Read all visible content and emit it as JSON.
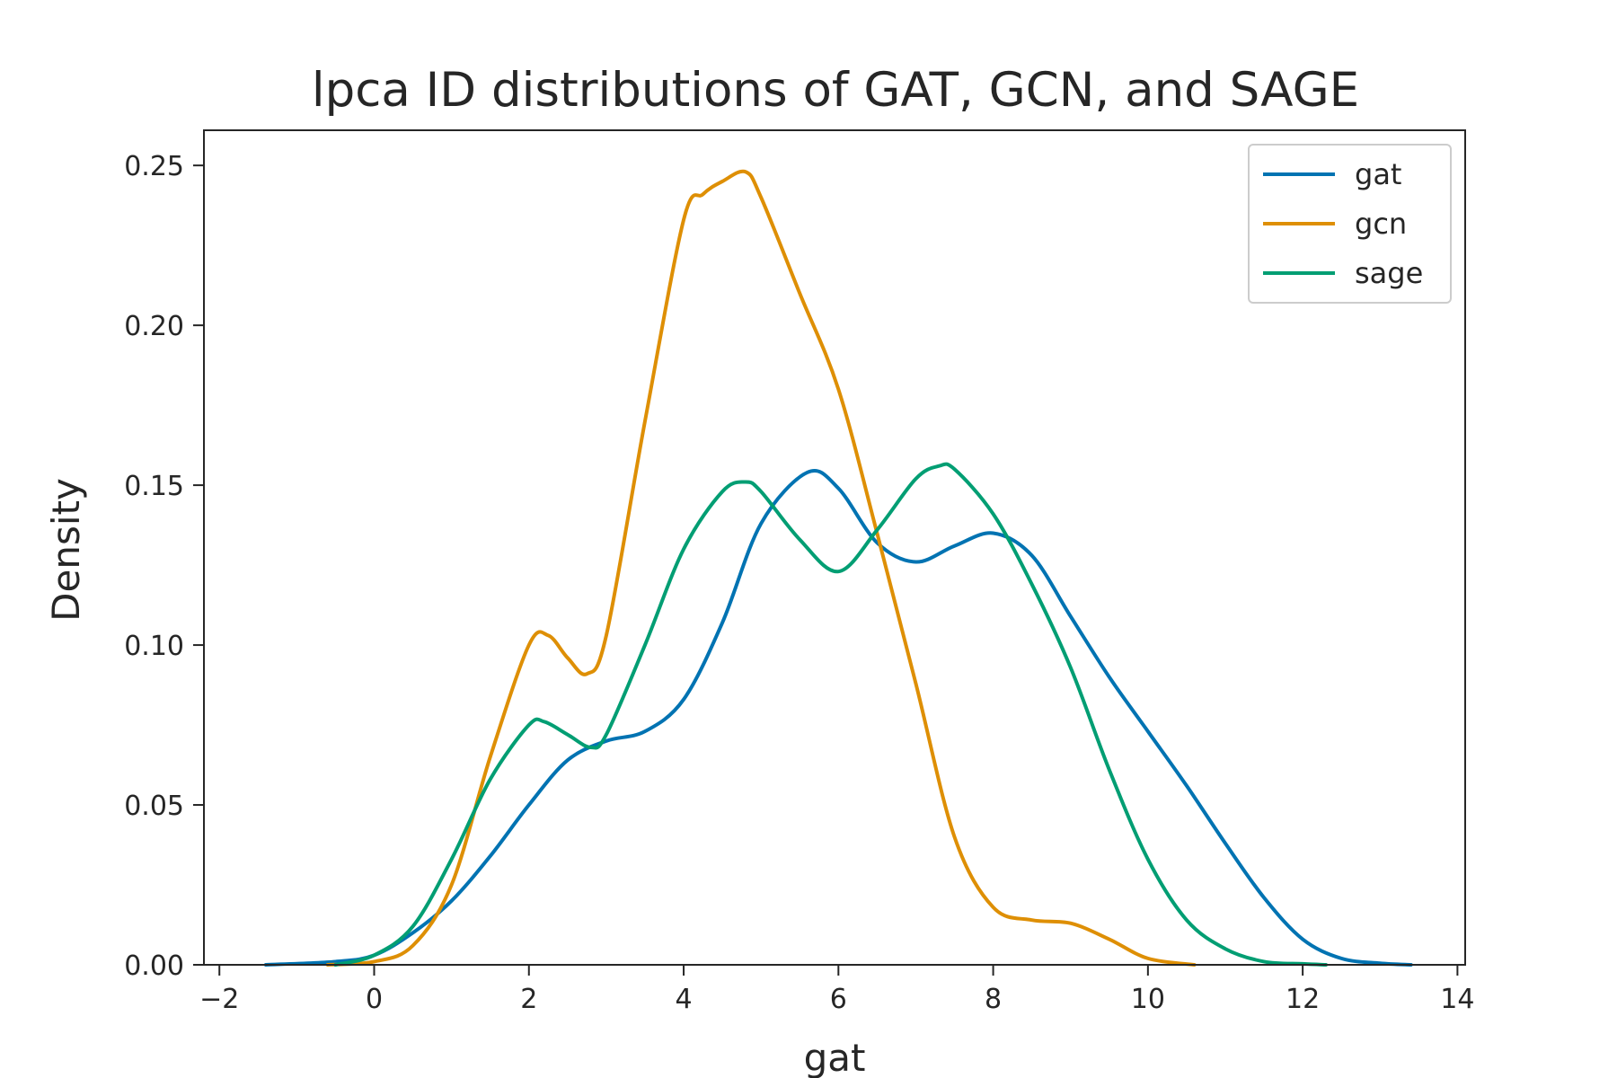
{
  "chart_data": {
    "type": "line",
    "title": "lpca ID distributions of GAT, GCN, and SAGE",
    "xlabel": "gat",
    "ylabel": "Density",
    "xlim": [
      -2.2,
      14.1
    ],
    "ylim": [
      0,
      0.261
    ],
    "xticks": [
      -2,
      0,
      2,
      4,
      6,
      8,
      10,
      12,
      14
    ],
    "xtick_labels": [
      "−2",
      "0",
      "2",
      "4",
      "6",
      "8",
      "10",
      "12",
      "14"
    ],
    "yticks": [
      0.0,
      0.05,
      0.1,
      0.15,
      0.2,
      0.25
    ],
    "ytick_labels": [
      "0.00",
      "0.05",
      "0.10",
      "0.15",
      "0.20",
      "0.25"
    ],
    "legend_position": "top-right",
    "grid": false,
    "series": [
      {
        "name": "gat",
        "color": "#0173b2",
        "x": [
          -1.4,
          -0.5,
          0,
          0.5,
          1,
          1.5,
          2,
          2.5,
          3,
          3.5,
          4,
          4.5,
          5,
          5.6,
          6,
          6.5,
          7,
          7.5,
          8,
          8.5,
          9,
          9.5,
          10,
          10.5,
          11,
          11.5,
          12,
          12.5,
          13,
          13.4
        ],
        "y": [
          0.0,
          0.001,
          0.003,
          0.01,
          0.02,
          0.034,
          0.05,
          0.064,
          0.07,
          0.073,
          0.083,
          0.107,
          0.138,
          0.154,
          0.149,
          0.132,
          0.126,
          0.131,
          0.135,
          0.128,
          0.109,
          0.09,
          0.073,
          0.056,
          0.038,
          0.021,
          0.008,
          0.002,
          0.0005,
          0.0
        ]
      },
      {
        "name": "gcn",
        "color": "#de8f05",
        "x": [
          -0.6,
          0,
          0.5,
          1,
          1.5,
          2,
          2.25,
          2.5,
          2.75,
          3,
          3.5,
          4,
          4.25,
          4.5,
          4.8,
          5,
          5.5,
          6,
          6.5,
          7,
          7.5,
          8,
          8.5,
          9,
          9.5,
          10,
          10.6
        ],
        "y": [
          0.0,
          0.001,
          0.006,
          0.025,
          0.065,
          0.1,
          0.103,
          0.096,
          0.091,
          0.103,
          0.17,
          0.233,
          0.241,
          0.245,
          0.248,
          0.24,
          0.21,
          0.18,
          0.135,
          0.088,
          0.04,
          0.018,
          0.014,
          0.013,
          0.008,
          0.002,
          0.0
        ]
      },
      {
        "name": "sage",
        "color": "#029e73",
        "x": [
          -0.5,
          0,
          0.5,
          1,
          1.5,
          2,
          2.2,
          2.5,
          2.8,
          3,
          3.5,
          4,
          4.5,
          4.8,
          5,
          5.5,
          6,
          6.5,
          7,
          7.3,
          7.5,
          8,
          8.5,
          9,
          9.5,
          10,
          10.5,
          11,
          11.5,
          12,
          12.3
        ],
        "y": [
          0.0,
          0.003,
          0.012,
          0.033,
          0.058,
          0.075,
          0.076,
          0.072,
          0.068,
          0.072,
          0.1,
          0.13,
          0.148,
          0.151,
          0.148,
          0.133,
          0.123,
          0.136,
          0.152,
          0.156,
          0.155,
          0.141,
          0.119,
          0.093,
          0.061,
          0.033,
          0.014,
          0.005,
          0.001,
          0.0003,
          0.0
        ]
      }
    ]
  }
}
